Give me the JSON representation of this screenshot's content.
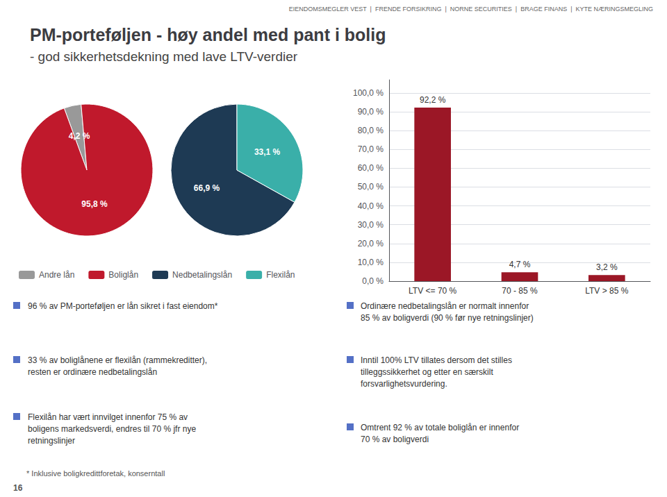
{
  "title": "PM-porteføljen - høy andel med pant i bolig",
  "subtitle": "- god sikkerhetsdekning med lave LTV-verdier",
  "annotations": [
    "EIENDOMSMEGLER VEST  |  FRENDE FORSIKRING  |  NORNE SECURITIES  |  BRAGE FINANS  |  KYTE NÆRINGSMEGLING",
    "96 % av PM-porteføljen er lån sikret i fast eiendom*",
    "33 % av boliglånene er flexilån (rammekreditter),\nresten er ordinære nedbetalingslån",
    "Flexilån har vært innvilget innenfor 75 % av\nboligens markedsverdi, endres til 70 % jfr nye\nretningslinjer",
    "Ordinære nedbetalingslån er normalt innenfor\n85 % av boligverdi (90 % før nye retningslinjer)",
    "Inntil 100% LTV tillates dersom det stilles\ntilleggssikkerhet og etter en særskilt\nforsvarlighetsvurdering.",
    "Omtrent 92 % av totale boliglån er innenfor\n70 % av boligverdi",
    "* Inklusive boligkredittforetak, konserntall",
    "16"
  ],
  "chart_data": [
    {
      "type": "pie",
      "categories": [
        "Andre lån",
        "Boliglån"
      ],
      "values": [
        4.2,
        95.8
      ],
      "value_labels": [
        "4,2 %",
        "95,8 %"
      ],
      "colors": [
        "#999999",
        "#c0192c"
      ],
      "data_labels": true,
      "legend": "bottom"
    },
    {
      "type": "pie",
      "categories": [
        "Nedbetalingslån",
        "Flexilån"
      ],
      "values": [
        66.9,
        33.1
      ],
      "value_labels": [
        "66,9 %",
        "33,1 %"
      ],
      "colors": [
        "#1e3a54",
        "#3aafa9"
      ],
      "data_labels": true,
      "legend": "bottom"
    },
    {
      "type": "bar",
      "categories": [
        "LTV <= 70 %",
        "70 - 85 %",
        "LTV > 85 %"
      ],
      "values": [
        92.2,
        4.7,
        3.2
      ],
      "value_labels": [
        "92,2 %",
        "4,7 %",
        "3,2 %"
      ],
      "color": "#9b1726",
      "data_labels": true,
      "grid": true,
      "ylim": [
        0,
        107
      ],
      "yticks": [
        {
          "value": 0.0,
          "label": "0,0 %"
        },
        {
          "value": 10.0,
          "label": "10,0 %"
        },
        {
          "value": 20.0,
          "label": "20,0 %"
        },
        {
          "value": 30.0,
          "label": "30,0 %"
        },
        {
          "value": 40.0,
          "label": "40,0 %"
        },
        {
          "value": 50.0,
          "label": "50,0 %"
        },
        {
          "value": 60.0,
          "label": "60,0 %"
        },
        {
          "value": 70.0,
          "label": "70,0 %"
        },
        {
          "value": 80.0,
          "label": "80,0 %"
        },
        {
          "value": 90.0,
          "label": "90,0 %"
        },
        {
          "value": 100.0,
          "label": "100,0 %"
        }
      ]
    }
  ]
}
